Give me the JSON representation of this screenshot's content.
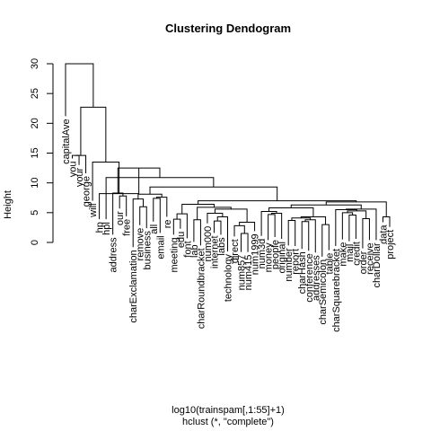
{
  "chart_data": {
    "type": "dendrogram",
    "title": "Clustering Dendogram",
    "ylabel": "Height",
    "xlabel": "log10(trainspam[,1:55]+1)",
    "sub": "hclust (*, \"complete\")",
    "ylim": [
      0,
      30
    ],
    "yticks": [
      0,
      5,
      10,
      15,
      20,
      25,
      30
    ],
    "leaves": [
      {
        "label": "capitalAve",
        "y": 21.2
      },
      {
        "label": "you",
        "y": 14.1
      },
      {
        "label": "your",
        "y": 13.0
      },
      {
        "label": "george",
        "y": 11.6
      },
      {
        "label": "will",
        "y": 7.0
      },
      {
        "label": "hp",
        "y": 3.9
      },
      {
        "label": "hpl",
        "y": 3.9
      },
      {
        "label": "address",
        "y": 1.3
      },
      {
        "label": "our",
        "y": 5.7
      },
      {
        "label": "free",
        "y": 4.4
      },
      {
        "label": "charExclamation",
        "y": -0.8
      },
      {
        "label": "remove",
        "y": 2.9
      },
      {
        "label": "business",
        "y": 2.4
      },
      {
        "label": "all",
        "y": 3.5
      },
      {
        "label": "email",
        "y": 1.6
      },
      {
        "label": "re",
        "y": 4.3
      },
      {
        "label": "meeting",
        "y": 1.3
      },
      {
        "label": "edu",
        "y": 2.3
      },
      {
        "label": "font",
        "y": 0.7
      },
      {
        "label": "lab",
        "y": 0.1
      },
      {
        "label": "charRoundbracket",
        "y": -0.5
      },
      {
        "label": "num000",
        "y": 3.2
      },
      {
        "label": "internet",
        "y": 1.6
      },
      {
        "label": "labs",
        "y": 1.3
      },
      {
        "label": "technology",
        "y": -1.5
      },
      {
        "label": "direct",
        "y": 1.0
      },
      {
        "label": "num857",
        "y": -1.6
      },
      {
        "label": "num415",
        "y": -1.6
      },
      {
        "label": "num1999",
        "y": 1.9
      },
      {
        "label": "num3d",
        "y": 1.1
      },
      {
        "label": "money",
        "y": 0.4
      },
      {
        "label": "people",
        "y": 0.9
      },
      {
        "label": "original",
        "y": 0.6
      },
      {
        "label": "number",
        "y": -0.5
      },
      {
        "label": "report",
        "y": -0.6
      },
      {
        "label": "charHash",
        "y": -1.1
      },
      {
        "label": "conference",
        "y": -1.4
      },
      {
        "label": "addresses",
        "y": -1.7
      },
      {
        "label": "charSemicolon",
        "y": -2.4
      },
      {
        "label": "table",
        "y": -1.3
      },
      {
        "label": "charSquarebracket",
        "y": -0.6
      },
      {
        "label": "make",
        "y": 0.5
      },
      {
        "label": "mail",
        "y": 0.2
      },
      {
        "label": "credit",
        "y": 0.6
      },
      {
        "label": "order",
        "y": -1.0
      },
      {
        "label": "receive",
        "y": 0.4
      },
      {
        "label": "charDollar",
        "y": 0.4
      },
      {
        "label": "data",
        "y": 3.4
      },
      {
        "label": "project",
        "y": 2.6
      }
    ]
  }
}
